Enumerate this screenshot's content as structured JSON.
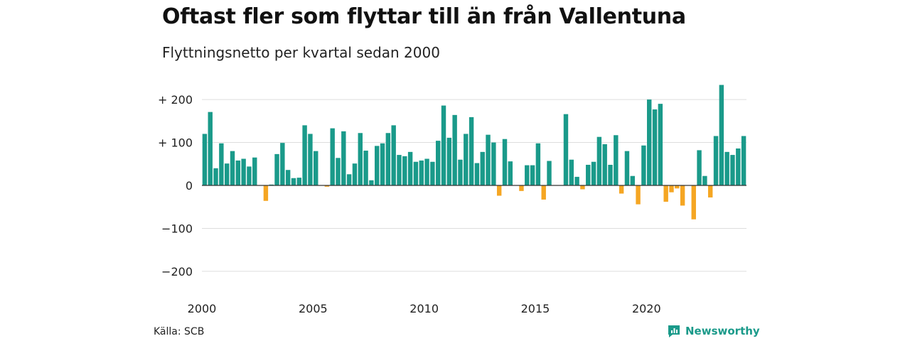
{
  "title": "Oftast fler som flyttar till än från Vallentuna",
  "subtitle": "Flyttningsnetto per kvartal sedan 2000",
  "source": "Källa: SCB",
  "brand": {
    "name": "Newsworthy",
    "icon": "newsworthy-logo-icon"
  },
  "colors": {
    "positive": "#1a9a8a",
    "negative": "#f5a623",
    "grid": "#dddddd",
    "zero_line": "#333333"
  },
  "chart_data": {
    "type": "bar",
    "title": "Oftast fler som flyttar till än från Vallentuna",
    "subtitle": "Flyttningsnetto per kvartal sedan 2000",
    "xlabel": "",
    "ylabel": "",
    "ylim": [
      -230,
      240
    ],
    "y_ticks": [
      200,
      100,
      0,
      -100,
      -200
    ],
    "y_tick_labels": [
      "+ 200",
      "+ 100",
      "0",
      "−100",
      "−200"
    ],
    "x_tick_years": [
      2000,
      2005,
      2010,
      2015,
      2020
    ],
    "x_tick_labels": [
      "2000",
      "2005",
      "2010",
      "2015",
      "2020"
    ],
    "grid": true,
    "start_year": 2000,
    "periods_per_year": 4,
    "values": [
      120,
      171,
      40,
      98,
      51,
      80,
      58,
      62,
      44,
      65,
      0,
      -36,
      2,
      73,
      99,
      36,
      17,
      18,
      140,
      120,
      80,
      0,
      -3,
      133,
      64,
      126,
      26,
      51,
      122,
      81,
      12,
      92,
      98,
      122,
      140,
      71,
      68,
      78,
      55,
      58,
      62,
      55,
      104,
      186,
      111,
      164,
      60,
      120,
      159,
      52,
      78,
      118,
      100,
      -24,
      108,
      56,
      0,
      -13,
      47,
      47,
      98,
      -33,
      57,
      0,
      0,
      166,
      60,
      20,
      -9,
      48,
      55,
      113,
      96,
      48,
      117,
      -19,
      80,
      22,
      -44,
      93,
      200,
      177,
      190,
      -38,
      -16,
      -7,
      -47,
      0,
      -79,
      82,
      22,
      -28,
      115,
      234,
      78,
      71,
      86,
      115
    ]
  }
}
